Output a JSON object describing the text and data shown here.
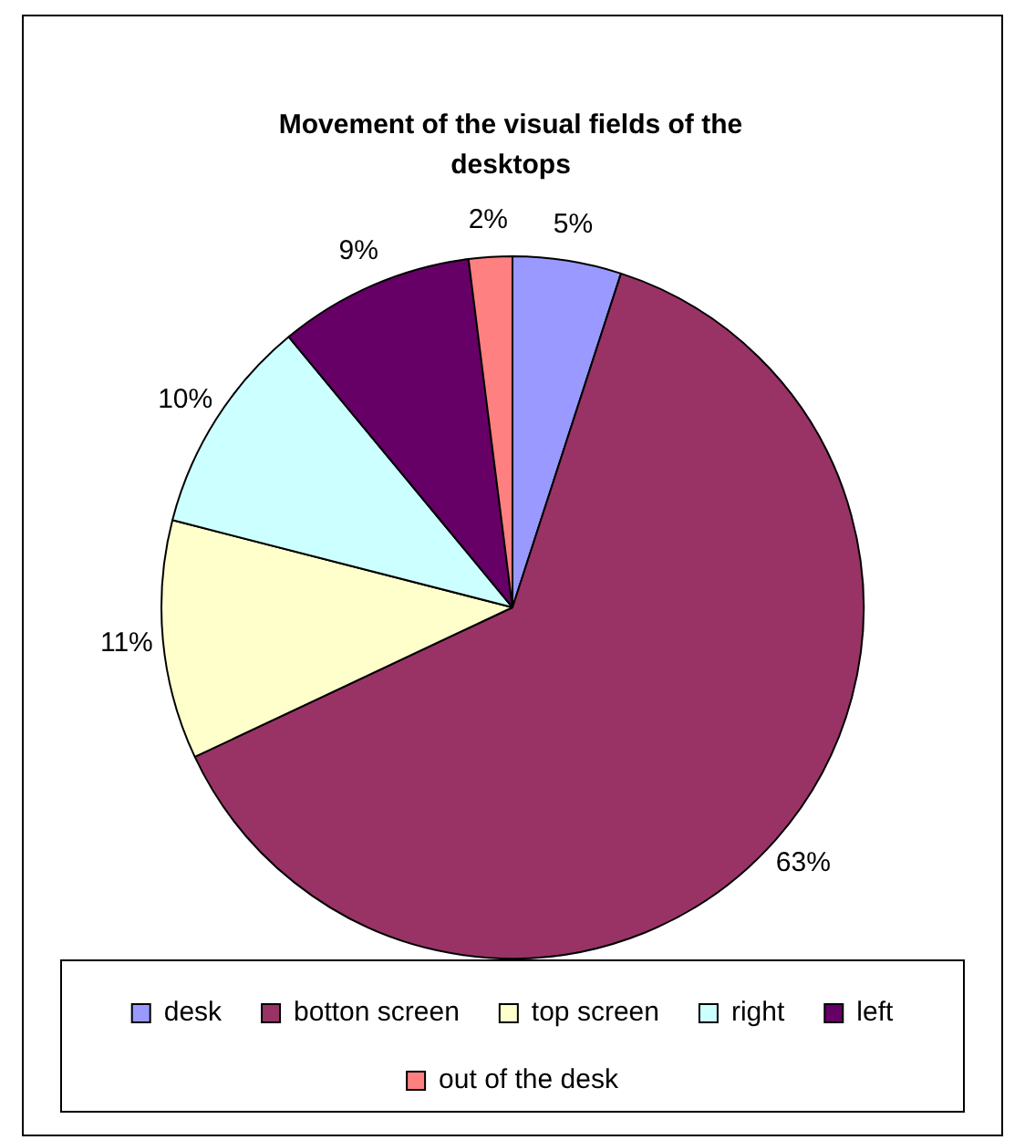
{
  "chart_data": {
    "type": "pie",
    "title": "Movement of the visual fields of the desktops",
    "categories": [
      "desk",
      "botton screen",
      "top screen",
      "right",
      "left",
      "out of the desk"
    ],
    "values": [
      5,
      63,
      11,
      10,
      9,
      2
    ],
    "value_labels": [
      "5%",
      "63%",
      "11%",
      "10%",
      "9%",
      "2%"
    ],
    "colors": [
      "#9999ff",
      "#993366",
      "#ffffcc",
      "#ccffff",
      "#660066",
      "#ff8080"
    ],
    "legend": "bottom"
  }
}
